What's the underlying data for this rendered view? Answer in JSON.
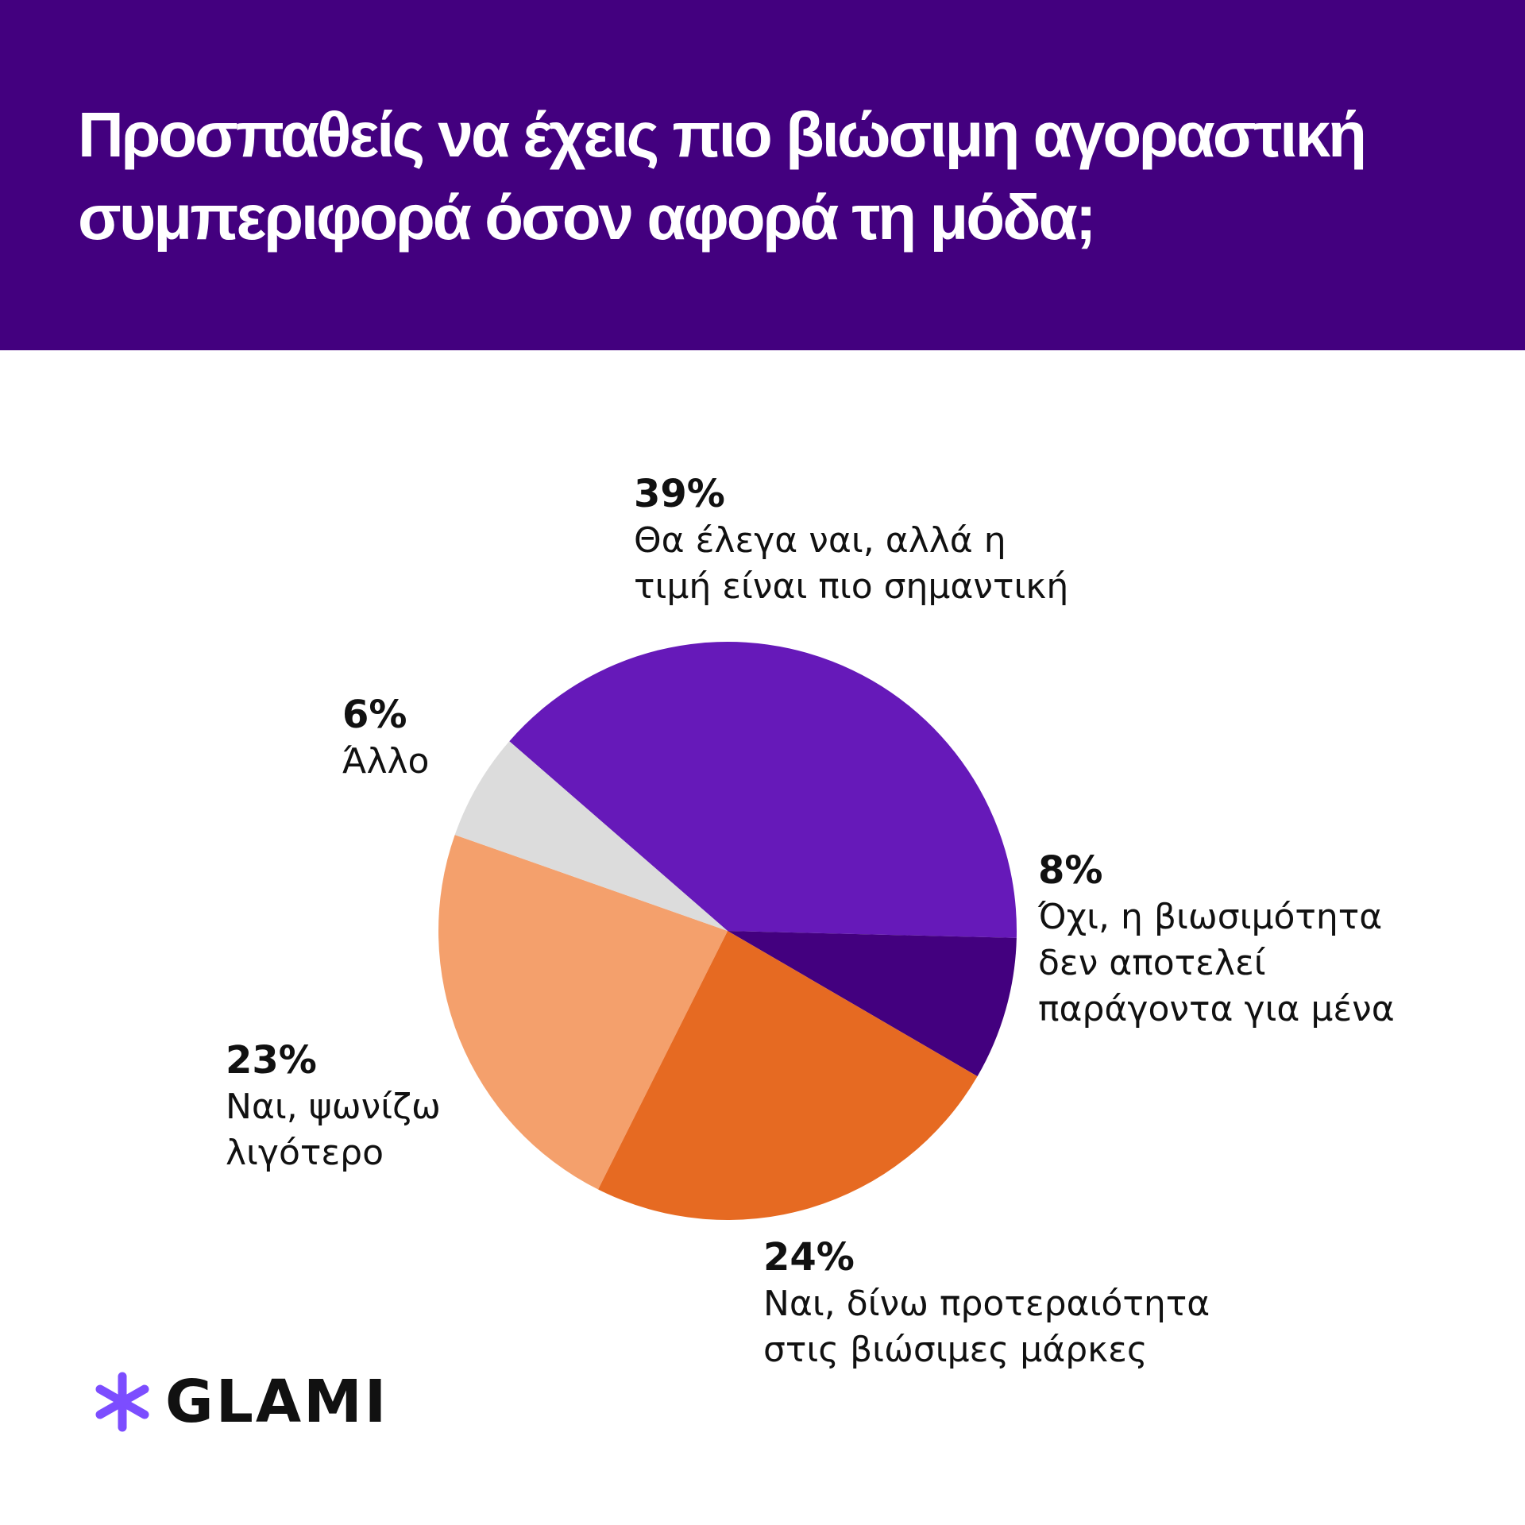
{
  "header": {
    "title": "Προσπαθείς να έχεις πιο βιώσιμη αγοραστική συμπεριφορά όσον αφορά τη μόδα;"
  },
  "chart_data": {
    "type": "pie",
    "title": "Προσπαθείς να έχεις πιο βιώσιμη αγοραστική συμπεριφορά όσον αφορά τη μόδα;",
    "slices": [
      {
        "label": "Θα έλεγα ναι, αλλά η\nτιμή είναι πιο σημαντική",
        "value": 39,
        "display": "39%",
        "color": "#6619b9"
      },
      {
        "label": "Όχι, η βιωσιμότητα\nδεν αποτελεί\nπαράγοντα για μένα",
        "value": 8,
        "display": "8%",
        "color": "#43007f"
      },
      {
        "label": "Ναι, δίνω προτεραιότητα\nστις βιώσιμες μάρκες",
        "value": 24,
        "display": "24%",
        "color": "#e66a22"
      },
      {
        "label": "Ναι, ψωνίζω\nλιγότερο",
        "value": 23,
        "display": "23%",
        "color": "#f4a06c"
      },
      {
        "label": "Άλλο",
        "value": 6,
        "display": "6%",
        "color": "#dcdcdc"
      }
    ]
  },
  "logo": {
    "text": "GLAMI",
    "icon": "asterisk-icon",
    "color": "#7c4dff"
  }
}
